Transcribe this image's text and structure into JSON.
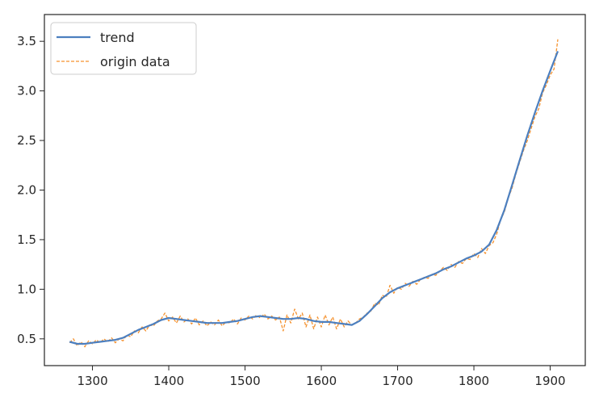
{
  "chart_data": {
    "type": "line",
    "title": "",
    "xlabel": "",
    "ylabel": "",
    "xlim": [
      1237,
      1946
    ],
    "ylim": [
      0.23,
      3.77
    ],
    "x_ticks": [
      1300,
      1400,
      1500,
      1600,
      1700,
      1800,
      1900
    ],
    "y_ticks": [
      0.5,
      1.0,
      1.5,
      2.0,
      2.5,
      3.0,
      3.5
    ],
    "grid": false,
    "legend_position": "top-left",
    "series": [
      {
        "name": "trend",
        "color": "#4c7fbf",
        "style": "solid",
        "x": [
          1270,
          1280,
          1290,
          1300,
          1310,
          1320,
          1330,
          1340,
          1350,
          1360,
          1370,
          1380,
          1390,
          1400,
          1410,
          1420,
          1430,
          1440,
          1450,
          1460,
          1470,
          1480,
          1490,
          1500,
          1510,
          1520,
          1530,
          1540,
          1550,
          1560,
          1570,
          1580,
          1590,
          1600,
          1610,
          1620,
          1630,
          1640,
          1650,
          1660,
          1670,
          1680,
          1690,
          1700,
          1710,
          1720,
          1730,
          1740,
          1750,
          1760,
          1770,
          1780,
          1790,
          1800,
          1810,
          1820,
          1830,
          1840,
          1850,
          1860,
          1870,
          1880,
          1890,
          1900,
          1910
        ],
        "y": [
          0.47,
          0.45,
          0.45,
          0.46,
          0.47,
          0.48,
          0.49,
          0.51,
          0.55,
          0.59,
          0.62,
          0.65,
          0.69,
          0.71,
          0.7,
          0.69,
          0.68,
          0.67,
          0.66,
          0.66,
          0.66,
          0.67,
          0.68,
          0.7,
          0.72,
          0.73,
          0.72,
          0.71,
          0.7,
          0.7,
          0.71,
          0.7,
          0.68,
          0.67,
          0.67,
          0.66,
          0.65,
          0.64,
          0.68,
          0.75,
          0.83,
          0.91,
          0.97,
          1.01,
          1.04,
          1.07,
          1.1,
          1.13,
          1.16,
          1.2,
          1.23,
          1.27,
          1.31,
          1.34,
          1.38,
          1.45,
          1.6,
          1.8,
          2.05,
          2.3,
          2.55,
          2.78,
          3.0,
          3.2,
          3.4
        ]
      },
      {
        "name": "origin data",
        "color": "#f5922f",
        "style": "dashed",
        "x": [
          1270,
          1275,
          1280,
          1285,
          1290,
          1295,
          1300,
          1305,
          1310,
          1315,
          1320,
          1325,
          1330,
          1335,
          1340,
          1345,
          1350,
          1355,
          1360,
          1365,
          1370,
          1375,
          1380,
          1385,
          1390,
          1395,
          1400,
          1405,
          1410,
          1415,
          1420,
          1425,
          1430,
          1435,
          1440,
          1445,
          1450,
          1455,
          1460,
          1465,
          1470,
          1475,
          1480,
          1485,
          1490,
          1495,
          1500,
          1505,
          1510,
          1515,
          1520,
          1525,
          1530,
          1535,
          1540,
          1545,
          1550,
          1555,
          1560,
          1565,
          1570,
          1575,
          1580,
          1585,
          1590,
          1595,
          1600,
          1605,
          1610,
          1615,
          1620,
          1625,
          1630,
          1635,
          1640,
          1645,
          1650,
          1655,
          1660,
          1665,
          1670,
          1675,
          1680,
          1685,
          1690,
          1695,
          1700,
          1705,
          1710,
          1715,
          1720,
          1725,
          1730,
          1735,
          1740,
          1745,
          1750,
          1755,
          1760,
          1765,
          1770,
          1775,
          1780,
          1785,
          1790,
          1795,
          1800,
          1805,
          1810,
          1815,
          1820,
          1825,
          1830,
          1835,
          1840,
          1845,
          1850,
          1855,
          1860,
          1865,
          1870,
          1875,
          1880,
          1885,
          1890,
          1895,
          1900,
          1905,
          1910
        ],
        "y": [
          0.46,
          0.5,
          0.43,
          0.47,
          0.42,
          0.48,
          0.45,
          0.49,
          0.46,
          0.5,
          0.47,
          0.51,
          0.46,
          0.5,
          0.48,
          0.54,
          0.52,
          0.58,
          0.56,
          0.62,
          0.58,
          0.64,
          0.63,
          0.68,
          0.7,
          0.76,
          0.68,
          0.72,
          0.66,
          0.73,
          0.67,
          0.7,
          0.65,
          0.71,
          0.64,
          0.68,
          0.63,
          0.67,
          0.64,
          0.69,
          0.63,
          0.67,
          0.66,
          0.7,
          0.65,
          0.71,
          0.69,
          0.73,
          0.7,
          0.74,
          0.71,
          0.75,
          0.7,
          0.73,
          0.69,
          0.72,
          0.58,
          0.74,
          0.66,
          0.8,
          0.7,
          0.76,
          0.62,
          0.74,
          0.6,
          0.72,
          0.62,
          0.74,
          0.64,
          0.72,
          0.6,
          0.7,
          0.62,
          0.68,
          0.64,
          0.66,
          0.7,
          0.72,
          0.76,
          0.78,
          0.86,
          0.84,
          0.94,
          0.92,
          1.04,
          0.96,
          1.02,
          1.0,
          1.06,
          1.03,
          1.08,
          1.05,
          1.1,
          1.12,
          1.11,
          1.15,
          1.14,
          1.18,
          1.22,
          1.19,
          1.25,
          1.22,
          1.28,
          1.26,
          1.31,
          1.3,
          1.36,
          1.32,
          1.41,
          1.36,
          1.44,
          1.47,
          1.56,
          1.7,
          1.78,
          1.92,
          2.02,
          2.16,
          2.28,
          2.4,
          2.5,
          2.62,
          2.74,
          2.82,
          2.98,
          3.06,
          3.16,
          3.22,
          3.52
        ]
      }
    ]
  }
}
